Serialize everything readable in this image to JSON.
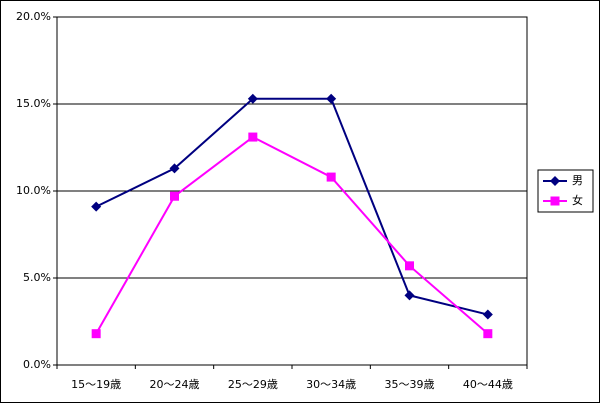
{
  "chart_data": {
    "type": "line",
    "categories": [
      "15～19歳",
      "20～24歳",
      "25～29歳",
      "30～34歳",
      "35～39歳",
      "40～44歳"
    ],
    "series": [
      {
        "name": "男",
        "color": "#000080",
        "marker": "diamond",
        "values": [
          9.1,
          11.3,
          15.3,
          15.3,
          4.0,
          2.9
        ]
      },
      {
        "name": "女",
        "color": "#ff00ff",
        "marker": "square",
        "values": [
          1.8,
          9.7,
          13.1,
          10.8,
          5.7,
          1.8
        ]
      }
    ],
    "ylim": [
      0,
      20
    ],
    "yticks": [
      {
        "value": 0,
        "label": "0.0%"
      },
      {
        "value": 5,
        "label": "5.0%"
      },
      {
        "value": 10,
        "label": "10.0%"
      },
      {
        "value": 15,
        "label": "15.0%"
      },
      {
        "value": 20,
        "label": "20.0%"
      }
    ],
    "grid": true,
    "legend": "right"
  }
}
